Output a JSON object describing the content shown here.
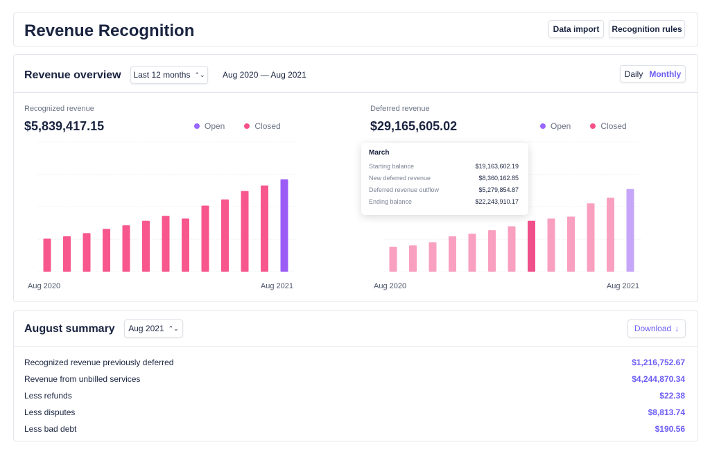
{
  "header": {
    "title": "Revenue Recognition",
    "buttons": [
      "Data import",
      "Recognition rules"
    ]
  },
  "overview": {
    "title": "Revenue overview",
    "range_select": "Last 12 months",
    "date_range": "Aug 2020 — Aug 2021",
    "toggle": [
      "Daily",
      "Monthly"
    ]
  },
  "chart_data": [
    {
      "type": "bar",
      "subtitle": "Recognized revenue",
      "title": "$5,839,417.15",
      "categories": [
        "Aug 2020",
        null,
        null,
        null,
        null,
        null,
        null,
        null,
        null,
        null,
        null,
        null,
        "Aug 2021"
      ],
      "ylim": [
        0,
        4
      ],
      "series": [
        {
          "name": "Open",
          "color": "#9b5cf6",
          "values": [
            null,
            null,
            null,
            null,
            null,
            null,
            null,
            null,
            null,
            null,
            null,
            null,
            2.85
          ]
        },
        {
          "name": "Closed",
          "color": "#f7578c",
          "values": [
            1.02,
            1.09,
            1.19,
            1.32,
            1.43,
            1.57,
            1.72,
            1.64,
            2.04,
            2.23,
            2.49,
            2.66,
            null
          ]
        }
      ]
    },
    {
      "type": "bar",
      "subtitle": "Deferred revenue",
      "title": "$29,165,605.02",
      "categories": [
        "Aug 2020",
        null,
        null,
        null,
        null,
        null,
        null,
        null,
        null,
        null,
        null,
        null,
        "Aug 2021"
      ],
      "ylim": [
        0,
        4
      ],
      "highlight": 7,
      "highlight_color": "#f0508a",
      "series": [
        {
          "name": "Open",
          "color": "#c6a6f8",
          "values": [
            null,
            null,
            null,
            null,
            null,
            null,
            null,
            null,
            null,
            null,
            null,
            null,
            2.55
          ]
        },
        {
          "name": "Closed",
          "color": "#f9a0c0",
          "values": [
            0.77,
            0.81,
            0.91,
            1.09,
            1.17,
            1.28,
            1.4,
            1.57,
            1.64,
            1.7,
            2.11,
            2.28,
            null
          ]
        }
      ],
      "tooltip": {
        "title": "March",
        "rows": [
          [
            "Starting balance",
            "$19,163,602.19"
          ],
          [
            "New deferred revenue",
            "$8,360,162.85"
          ],
          [
            "Deferred revenue outflow",
            "$5,279,854.87"
          ],
          [
            "Ending balance",
            "$22,243,910.17"
          ]
        ]
      }
    }
  ],
  "summary": {
    "title": "August summary",
    "select": "Aug 2021",
    "download": "Download",
    "rows": [
      [
        "Recognized revenue previously deferred",
        "$1,216,752.67"
      ],
      [
        "Revenue from unbilled services",
        "$4,244,870.34"
      ],
      [
        "Less refunds",
        "$22.38"
      ],
      [
        "Less disputes",
        "$8,813.74"
      ],
      [
        "Less bad debt",
        "$190.56"
      ]
    ]
  }
}
